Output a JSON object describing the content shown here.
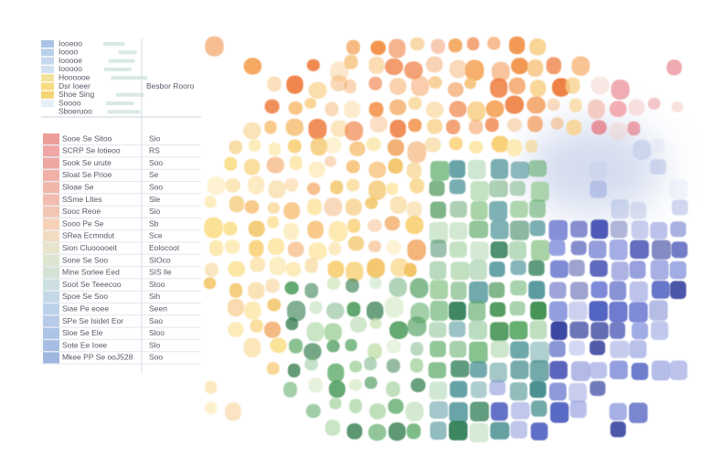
{
  "panel": {
    "legend_rows": [
      [
        "Iooeoo",
        ""
      ],
      [
        "Ioooo",
        ""
      ],
      [
        "Iooooe",
        ""
      ],
      [
        "Iooooo",
        ""
      ],
      [
        "Hoooooe",
        ""
      ],
      [
        "Dsr Ioeer",
        "Besbor Rooro"
      ],
      [
        "Shoe Sing",
        ""
      ],
      [
        "Soooo",
        ""
      ],
      [
        "Sboeruoo",
        ""
      ]
    ],
    "rows": [
      [
        "Sooe Se Sitoo",
        "Sio"
      ],
      [
        "SCRP Se lotieoo",
        "RS"
      ],
      [
        "Sook Se urute",
        "Soo"
      ],
      [
        "Sloat Se Prioe",
        "Se"
      ],
      [
        "Sloae Se",
        "Soo"
      ],
      [
        "SSme Lltes",
        "Sle"
      ],
      [
        "Sooc Reoe",
        "Sio"
      ],
      [
        "Sooo Pe Se",
        "Sb"
      ],
      [
        "SRea Ecmndut",
        "Sce"
      ],
      [
        "Sion Cluooooeit",
        "Eolocoot"
      ],
      [
        "Sone Se Soo",
        "SIOco"
      ],
      [
        "Mine Sorlee Eed",
        "SIS lle"
      ],
      [
        "Soot Se Teeecoo",
        "Stoo"
      ],
      [
        "Spoe Se Soo",
        "Sih"
      ],
      [
        "Siae Pe eoee",
        "Seen"
      ],
      [
        "SPe Se Isidet Eor",
        "Sao"
      ],
      [
        "Sloe Se Ele",
        "Sloo"
      ],
      [
        "Sote Ee Ioee",
        "Slo"
      ],
      [
        "Mkee PP Se ooJ528",
        "Soo"
      ]
    ]
  }
}
